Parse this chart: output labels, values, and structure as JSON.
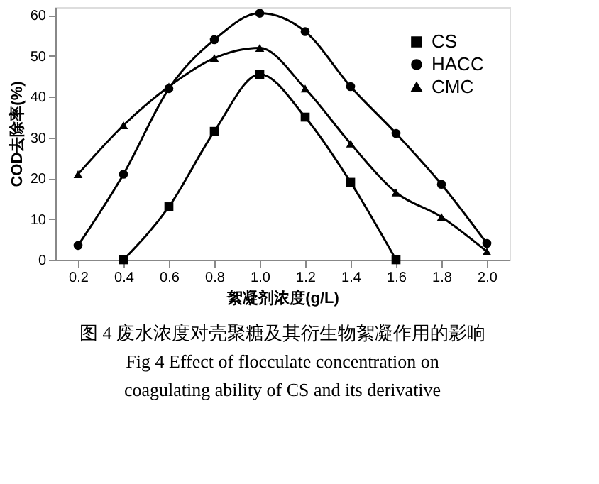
{
  "chart_data": {
    "type": "line",
    "xlabel": "絮凝剂浓度(g/L)",
    "ylabel": "COD去除率(%)",
    "xlim": [
      0.1,
      2.1
    ],
    "ylim": [
      0,
      62
    ],
    "xticks": [
      0.2,
      0.4,
      0.6,
      0.8,
      {
        "value": 1,
        "label": "1.0"
      },
      1.2,
      1.4,
      1.6,
      1.8,
      {
        "value": 2,
        "label": "2.0"
      }
    ],
    "yticks": [
      0,
      10,
      20,
      30,
      40,
      50,
      60
    ],
    "legend": "top right",
    "line_style": "solid",
    "grid": false,
    "series": [
      {
        "name": "CS",
        "color": "#000000",
        "marker": "square",
        "x": [
          0.4,
          0.6,
          0.8,
          1.0,
          1.2,
          1.4,
          1.6
        ],
        "values": [
          0,
          13,
          31.5,
          45.5,
          35,
          19,
          0
        ]
      },
      {
        "name": "HACC",
        "color": "#000000",
        "marker": "circle",
        "x": [
          0.2,
          0.4,
          0.6,
          0.8,
          1.0,
          1.2,
          1.4,
          1.6,
          1.8,
          2.0
        ],
        "values": [
          3.5,
          21,
          42,
          54,
          60.5,
          56,
          42.5,
          31,
          18.5,
          4
        ]
      },
      {
        "name": "CMC",
        "color": "#000000",
        "marker": "triangle",
        "x": [
          0.2,
          0.4,
          0.6,
          0.8,
          1.0,
          1.2,
          1.4,
          1.6,
          1.8,
          2.0
        ],
        "values": [
          21,
          33,
          42.5,
          49.5,
          52,
          42,
          28.5,
          16.5,
          10.5,
          2
        ]
      }
    ],
    "annotations": [
      "图 4  废水浓度对壳聚糖及其衍生物絮凝作用的影响",
      "Fig 4  Effect of flocculate concentration on",
      "coagulating ability of CS and its derivative"
    ]
  }
}
